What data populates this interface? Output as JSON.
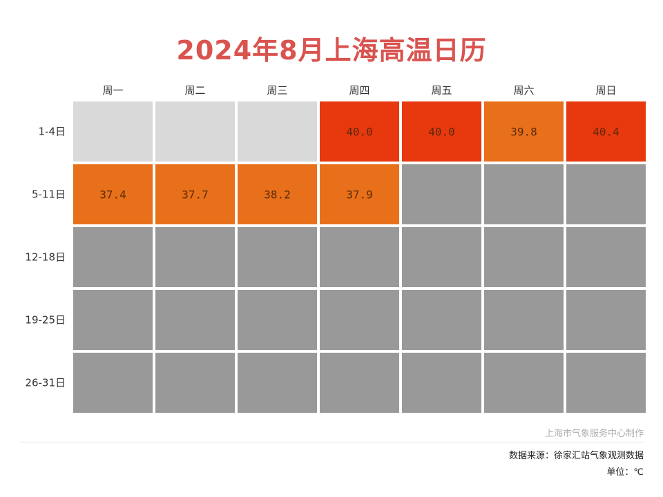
{
  "chart_data": {
    "type": "heatmap",
    "title": "2024年8月上海高温日历",
    "columns": [
      "周一",
      "周二",
      "周三",
      "周四",
      "周五",
      "周六",
      "周日"
    ],
    "rows": [
      "1-4日",
      "5-11日",
      "12-18日",
      "19-25日",
      "26-31日"
    ],
    "values": [
      [
        null,
        null,
        null,
        40.0,
        40.0,
        39.8,
        40.4
      ],
      [
        37.4,
        37.7,
        38.2,
        37.9,
        null,
        null,
        null
      ],
      [
        null,
        null,
        null,
        null,
        null,
        null,
        null
      ],
      [
        null,
        null,
        null,
        null,
        null,
        null,
        null
      ],
      [
        null,
        null,
        null,
        null,
        null,
        null,
        null
      ]
    ],
    "cell_states": [
      [
        "empty",
        "empty",
        "empty",
        "value",
        "value",
        "value",
        "value"
      ],
      [
        "value",
        "value",
        "value",
        "value",
        "future",
        "future",
        "future"
      ],
      [
        "future",
        "future",
        "future",
        "future",
        "future",
        "future",
        "future"
      ],
      [
        "future",
        "future",
        "future",
        "future",
        "future",
        "future",
        "future"
      ],
      [
        "future",
        "future",
        "future",
        "future",
        "future",
        "future",
        "future"
      ]
    ],
    "colors": {
      "above_40": "#e8380e",
      "35_to_40": "#e8701a",
      "empty": "#d9d9d9",
      "future": "#999999",
      "title": "#d9534f"
    }
  },
  "footer": {
    "credit": "上海市气象服务中心制作",
    "source": "数据来源：徐家汇站气象观测数据",
    "unit": "单位：℃"
  }
}
